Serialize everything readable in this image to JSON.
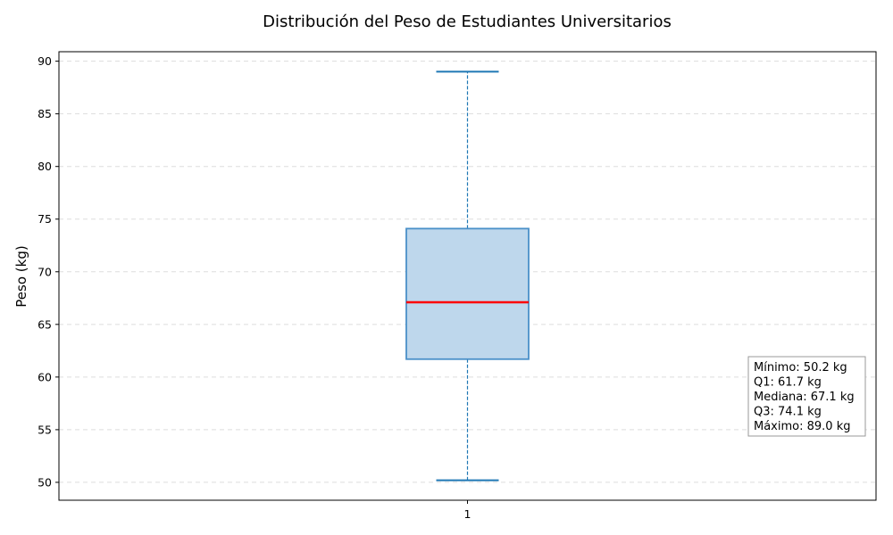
{
  "chart_data": {
    "type": "box",
    "title": "Distribución del Peso de Estudiantes Universitarios",
    "xlabel": "",
    "ylabel": "Peso (kg)",
    "categories": [
      "1"
    ],
    "ylim": [
      48.3,
      90.9
    ],
    "yticks": [
      50,
      55,
      60,
      65,
      70,
      75,
      80,
      85,
      90
    ],
    "grid": "y-dashed",
    "box": {
      "min": 50.2,
      "q1": 61.7,
      "median": 67.1,
      "q3": 74.1,
      "max": 89.0
    },
    "stats_box": {
      "lines": [
        "Mínimo: 50.2 kg",
        "Q1: 61.7 kg",
        "Mediana: 67.1 kg",
        "Q3: 74.1 kg",
        "Máximo: 89.0 kg"
      ],
      "placement": "right"
    },
    "colors": {
      "box_fill": "#bed7ec",
      "box_edge": "#4a90c8",
      "whisker": "#1f77b4",
      "median": "#ff0000",
      "grid": "#dddddd"
    }
  }
}
